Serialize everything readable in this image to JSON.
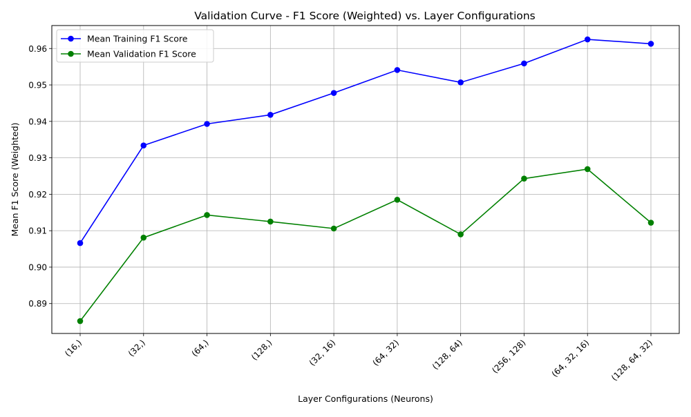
{
  "chart_data": {
    "type": "line",
    "title": "Validation Curve - F1 Score (Weighted) vs. Layer Configurations",
    "xlabel": "Layer Configurations (Neurons)",
    "ylabel": "Mean F1 Score (Weighted)",
    "categories": [
      "(16,)",
      "(32,)",
      "(64,)",
      "(128,)",
      "(32, 16)",
      "(64, 32)",
      "(128, 64)",
      "(256, 128)",
      "(64, 32, 16)",
      "(128, 64, 32)"
    ],
    "ylim": [
      0.8818,
      0.9663
    ],
    "yticks": [
      0.89,
      0.9,
      0.91,
      0.92,
      0.93,
      0.94,
      0.95,
      0.96
    ],
    "ytick_labels": [
      "0.89",
      "0.90",
      "0.91",
      "0.92",
      "0.93",
      "0.94",
      "0.95",
      "0.96"
    ],
    "grid": true,
    "legend_position": "top-left",
    "series": [
      {
        "name": "Mean Training F1 Score",
        "color": "#0000ff",
        "values": [
          0.9066,
          0.9334,
          0.9393,
          0.9418,
          0.9478,
          0.9541,
          0.9507,
          0.9559,
          0.9625,
          0.9613
        ]
      },
      {
        "name": "Mean Validation F1 Score",
        "color": "#008000",
        "values": [
          0.8852,
          0.9081,
          0.9143,
          0.9125,
          0.9106,
          0.9185,
          0.909,
          0.9243,
          0.9269,
          0.9122
        ]
      }
    ]
  }
}
